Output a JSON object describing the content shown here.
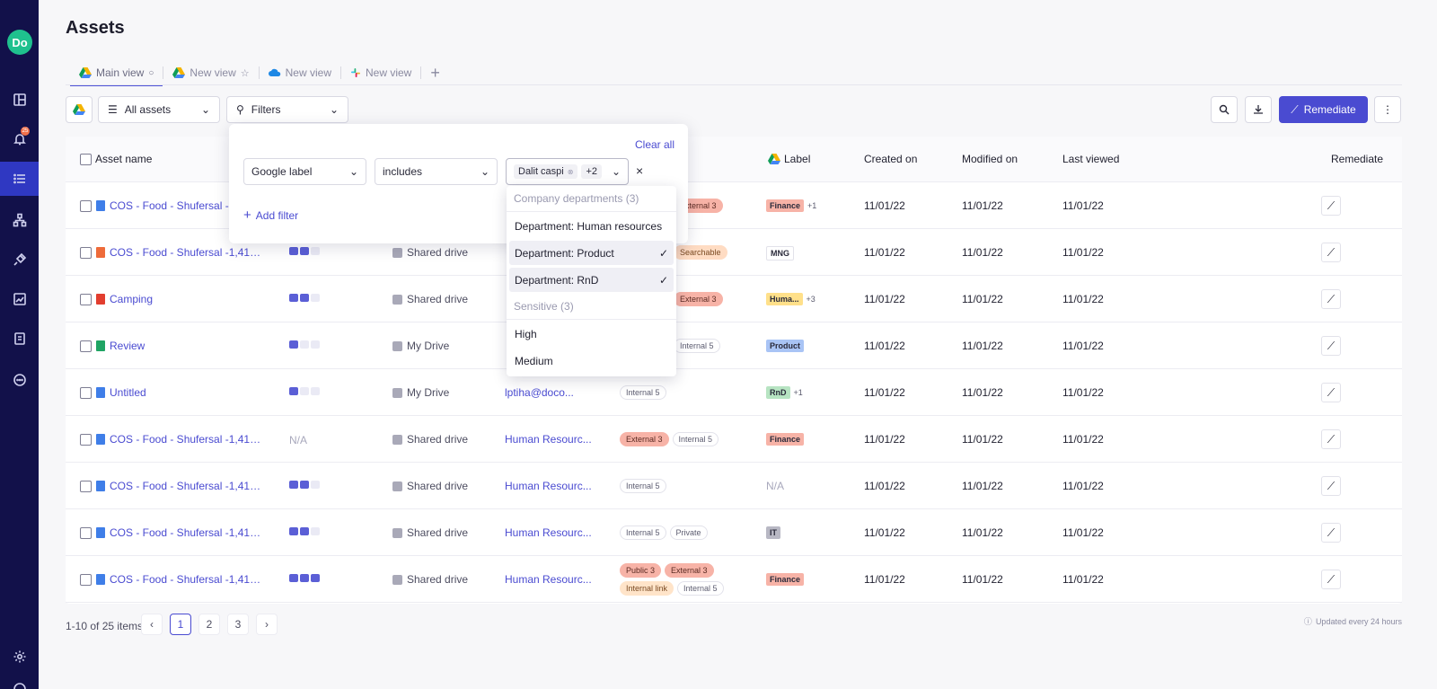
{
  "app": {
    "logo_text": "Do",
    "notification_count": "25"
  },
  "sidebar": {
    "items": [
      "dashboard",
      "alerts",
      "assets",
      "integrations",
      "plugins",
      "analytics",
      "reports",
      "more"
    ],
    "settings": "settings"
  },
  "page": {
    "title": "Assets"
  },
  "tabs": [
    {
      "label": "Main view"
    },
    {
      "label": "New view"
    },
    {
      "label": "New view"
    },
    {
      "label": "New view"
    }
  ],
  "toolbar": {
    "scope_label": "All assets",
    "filters_label": "Filters",
    "remediate_label": "Remediate"
  },
  "table": {
    "headers": {
      "asset_name": "Asset name",
      "label": "Label",
      "created_on": "Created on",
      "modified_on": "Modified on",
      "last_viewed": "Last viewed",
      "remediate": "Remediate"
    },
    "rows": [
      {
        "name": "COS - Food - Shufersal -1,416.76...",
        "icon_color": "#3f7ee8",
        "sensitivity": null,
        "location": "",
        "owner": "",
        "tags": [
          {
            "text": "External 3",
            "kind": "ext"
          }
        ],
        "labels": [
          {
            "text": "Finance",
            "color": "#f7b3a7"
          }
        ],
        "extra": "+1",
        "created": "11/01/22",
        "modified": "11/01/22",
        "viewed": "11/01/22"
      },
      {
        "name": "COS - Food - Shufersal -1,416.76...",
        "icon_color": "#ee6b3a",
        "sensitivity": 2,
        "location": "Shared drive",
        "owner": "",
        "tags": [
          {
            "text": "Searchable",
            "kind": "search"
          }
        ],
        "labels": [
          {
            "text": "MNG",
            "color": "#ffffff"
          }
        ],
        "extra": "",
        "created": "11/01/22",
        "modified": "11/01/22",
        "viewed": "11/01/22"
      },
      {
        "name": "Camping",
        "icon_color": "#e23e2f",
        "sensitivity": 2,
        "location": "Shared drive",
        "owner": "",
        "tags": [
          {
            "text": "External 3",
            "kind": "ext"
          }
        ],
        "labels": [
          {
            "text": "Huma...",
            "color": "#ffe08a"
          }
        ],
        "extra": "+3",
        "created": "11/01/22",
        "modified": "11/01/22",
        "viewed": "11/01/22"
      },
      {
        "name": "Review",
        "icon_color": "#1fa463",
        "sensitivity": 1,
        "location": "My Drive",
        "owner": "",
        "tags": [
          {
            "text": "Internal 5",
            "kind": "int"
          }
        ],
        "labels": [
          {
            "text": "Product",
            "color": "#a9c4f5"
          }
        ],
        "extra": "",
        "created": "11/01/22",
        "modified": "11/01/22",
        "viewed": "11/01/22"
      },
      {
        "name": "Untitled",
        "icon_color": "#3f7ee8",
        "sensitivity": 1,
        "location": "My Drive",
        "owner": "lptiha@doco...",
        "tags": [
          {
            "text": "Internal 5",
            "kind": "int"
          }
        ],
        "labels": [
          {
            "text": "RnD",
            "color": "#b7e4c2"
          }
        ],
        "extra": "+1",
        "created": "11/01/22",
        "modified": "11/01/22",
        "viewed": "11/01/22"
      },
      {
        "name": "COS - Food - Shufersal -1,416.76...",
        "icon_color": "#3f7ee8",
        "sensitivity": 0,
        "sens_na": "N/A",
        "location": "Shared drive",
        "owner": "Human Resourc...",
        "tags": [
          {
            "text": "External 3",
            "kind": "ext"
          },
          {
            "text": "Internal 5",
            "kind": "int"
          }
        ],
        "labels": [
          {
            "text": "Finance",
            "color": "#f7b3a7"
          }
        ],
        "extra": "",
        "created": "11/01/22",
        "modified": "11/01/22",
        "viewed": "11/01/22"
      },
      {
        "name": "COS - Food - Shufersal -1,416.76...",
        "icon_color": "#3f7ee8",
        "sensitivity": 2,
        "location": "Shared drive",
        "owner": "Human Resourc...",
        "tags": [
          {
            "text": "Internal 5",
            "kind": "int"
          }
        ],
        "labels": [],
        "label_na": "N/A",
        "extra": "",
        "created": "11/01/22",
        "modified": "11/01/22",
        "viewed": "11/01/22"
      },
      {
        "name": "COS - Food - Shufersal -1,416.76...",
        "icon_color": "#3f7ee8",
        "sensitivity": 2,
        "location": "Shared drive",
        "owner": "Human Resourc...",
        "tags": [
          {
            "text": "Internal 5",
            "kind": "int"
          },
          {
            "text": "Private",
            "kind": "int"
          }
        ],
        "labels": [
          {
            "text": "IT",
            "color": "#b8b8c4"
          }
        ],
        "extra": "",
        "created": "11/01/22",
        "modified": "11/01/22",
        "viewed": "11/01/22"
      },
      {
        "name": "COS - Food - Shufersal -1,416.76...",
        "icon_color": "#3f7ee8",
        "sensitivity": 3,
        "location": "Shared drive",
        "owner": "Human Resourc...",
        "tags": [
          {
            "text": "Public 3",
            "kind": "pub"
          },
          {
            "text": "External 3",
            "kind": "ext"
          },
          {
            "text": "Internal link",
            "kind": "link"
          },
          {
            "text": "Internal 5",
            "kind": "int"
          }
        ],
        "labels": [
          {
            "text": "Finance",
            "color": "#f7b3a7"
          }
        ],
        "extra": "",
        "created": "11/01/22",
        "modified": "11/01/22",
        "viewed": "11/01/22"
      }
    ]
  },
  "pagination": {
    "summary": "1-10 of 25 items",
    "pages": [
      "1",
      "2",
      "3"
    ],
    "current": "1",
    "updated_note": "Updated every 24 hours"
  },
  "filter_panel": {
    "clear_all": "Clear all",
    "field": "Google label",
    "operator": "includes",
    "value_chip": "Dalit caspi",
    "more_count": "+2",
    "add_filter": "Add filter"
  },
  "dropdown": {
    "groups": [
      {
        "title": "Company departments (3)",
        "items": [
          {
            "label": "Department: Human resources",
            "selected": false
          },
          {
            "label": "Department: Product",
            "selected": true
          },
          {
            "label": "Department: RnD",
            "selected": true
          }
        ]
      },
      {
        "title": "Sensitive (3)",
        "items": [
          {
            "label": "High",
            "selected": false
          },
          {
            "label": "Medium",
            "selected": false
          }
        ]
      }
    ]
  }
}
